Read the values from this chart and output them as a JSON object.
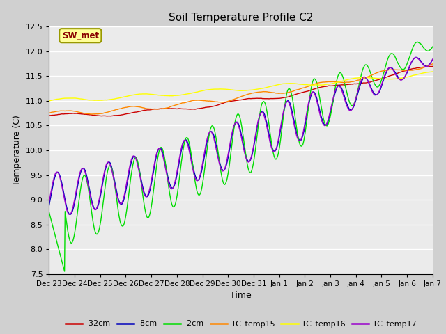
{
  "title": "Soil Temperature Profile C2",
  "xlabel": "Time",
  "ylabel": "Temperature (C)",
  "ylim": [
    7.5,
    12.5
  ],
  "yticks": [
    7.5,
    8.0,
    8.5,
    9.0,
    9.5,
    10.0,
    10.5,
    11.0,
    11.5,
    12.0,
    12.5
  ],
  "plot_bg_color": "#ebebeb",
  "fig_bg_color": "#d0d0d0",
  "series": {
    "-32cm": {
      "color": "#cc0000",
      "lw": 1.0
    },
    "-8cm": {
      "color": "#0000bb",
      "lw": 1.0
    },
    "-2cm": {
      "color": "#00dd00",
      "lw": 1.0
    },
    "TC_temp15": {
      "color": "#ff8800",
      "lw": 1.0
    },
    "TC_temp16": {
      "color": "#ffff00",
      "lw": 1.0
    },
    "TC_temp17": {
      "color": "#9900cc",
      "lw": 1.0
    }
  },
  "annotation_text": "SW_met",
  "annotation_color": "#880000",
  "annotation_bg": "#ffff99",
  "annotation_border": "#999900",
  "x_tick_labels": [
    "Dec 23",
    "Dec 24",
    "Dec 25",
    "Dec 26",
    "Dec 27",
    "Dec 28",
    "Dec 29",
    "Dec 30",
    "Dec 31",
    "Jan 1",
    "Jan 2",
    "Jan 3",
    "Jan 4",
    "Jan 5",
    "Jan 6",
    "Jan 7"
  ],
  "n_days": 15,
  "n_points": 720
}
